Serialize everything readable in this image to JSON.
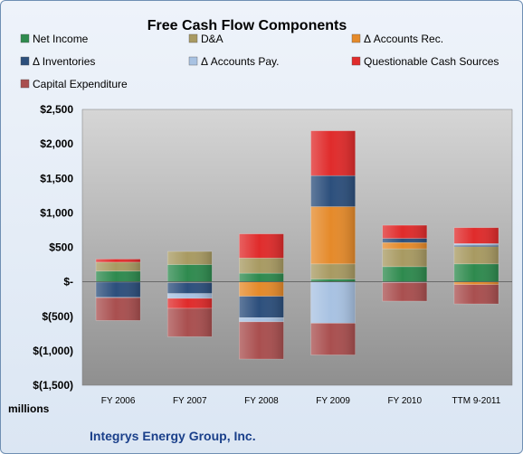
{
  "chart_data": {
    "type": "bar",
    "stacked": true,
    "title": "Free Cash Flow Components",
    "categories": [
      "FY 2006",
      "FY 2007",
      "FY 2008",
      "FY 2009",
      "FY 2010",
      "TTM 9-2011"
    ],
    "ylim": [
      -1500,
      2500
    ],
    "yticks": [
      2500,
      2000,
      1500,
      1000,
      500,
      0,
      -500,
      -1000,
      -1500
    ],
    "ytick_labels": [
      "$2,500",
      "$2,000",
      "$1,500",
      "$1,000",
      "$500",
      "$-",
      "$(500)",
      "$(1,000)",
      "$(1,500)"
    ],
    "y_unit_label": "millions",
    "footer": "Integrys Energy Group, Inc.",
    "legend_position": "top",
    "grid": false,
    "series": [
      {
        "name": "Net Income",
        "color": "#2e8a4e",
        "values": [
          155,
          250,
          125,
          40,
          220,
          260
        ]
      },
      {
        "name": "D&A",
        "color": "#a89a62",
        "values": [
          130,
          190,
          220,
          220,
          260,
          250
        ]
      },
      {
        "name": "Δ Accounts Rec.",
        "color": "#e58a2a",
        "values": [
          -5,
          -10,
          -210,
          830,
          90,
          -40
        ]
      },
      {
        "name": "Δ Inventories",
        "color": "#2c4f7c",
        "values": [
          -220,
          -160,
          -310,
          450,
          60,
          20
        ]
      },
      {
        "name": "Δ Accounts Pay.",
        "color": "#a8c2e2",
        "values": [
          -5,
          -70,
          -60,
          -600,
          -10,
          25
        ]
      },
      {
        "name": "Questionable Cash Sources",
        "color": "#e02b2b",
        "values": [
          45,
          -145,
          350,
          650,
          190,
          230
        ]
      },
      {
        "name": "Capital Expenditure",
        "color": "#a94f4f",
        "values": [
          -330,
          -410,
          -540,
          -460,
          -270,
          -280
        ]
      }
    ]
  }
}
